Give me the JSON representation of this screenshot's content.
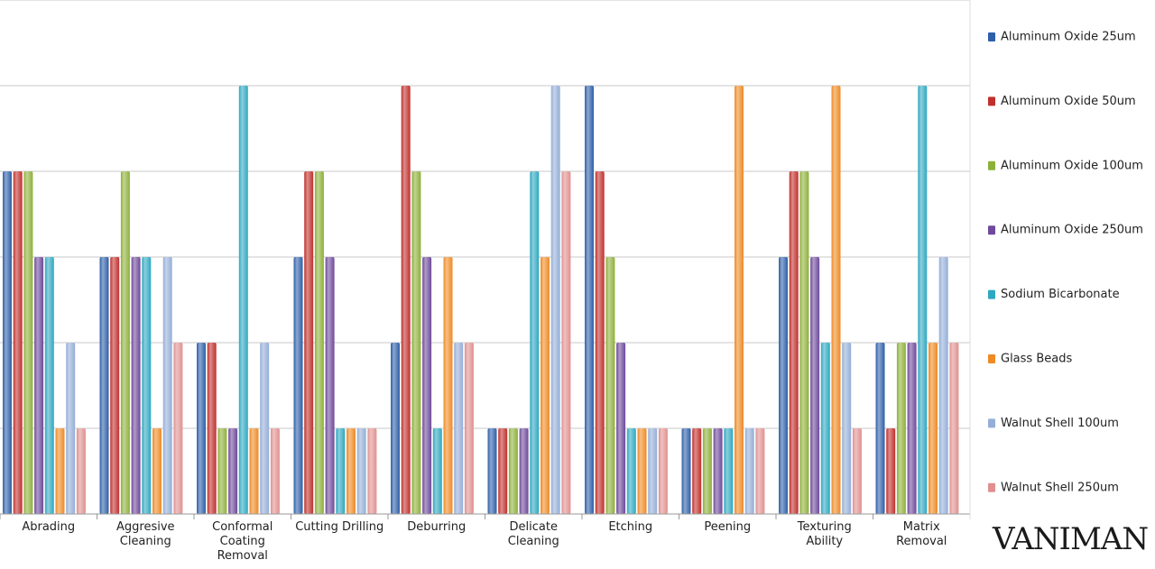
{
  "chart_data": {
    "type": "bar",
    "categories": [
      "Abrading",
      "Aggresive Cleaning",
      "Conformal Coating Removal",
      "Cutting Drilling",
      "Deburring",
      "Delicate Cleaning",
      "Etching",
      "Peening",
      "Texturing Ability",
      "Matrix Removal"
    ],
    "series": [
      {
        "name": "Aluminum Oxide 25um",
        "color": "#2e5fa8",
        "values": [
          4,
          3,
          2,
          3,
          2,
          1,
          5,
          1,
          3,
          2
        ]
      },
      {
        "name": "Aluminum Oxide 50um",
        "color": "#c0302c",
        "values": [
          4,
          3,
          2,
          4,
          5,
          1,
          4,
          1,
          4,
          1
        ]
      },
      {
        "name": "Aluminum Oxide 100um",
        "color": "#8db03a",
        "values": [
          4,
          4,
          1,
          4,
          4,
          1,
          3,
          1,
          4,
          2
        ]
      },
      {
        "name": "Aluminum Oxide 250um",
        "color": "#6f4a9a",
        "values": [
          3,
          3,
          1,
          3,
          3,
          1,
          2,
          1,
          3,
          2
        ]
      },
      {
        "name": "Sodium Bicarbonate",
        "color": "#2ea8c0",
        "values": [
          3,
          3,
          5,
          1,
          1,
          4,
          1,
          1,
          2,
          5
        ]
      },
      {
        "name": "Glass Beads",
        "color": "#ef8a24",
        "values": [
          1,
          1,
          1,
          1,
          3,
          3,
          1,
          5,
          5,
          2
        ]
      },
      {
        "name": "Walnut Shell 100um",
        "color": "#94aed8",
        "values": [
          2,
          3,
          2,
          1,
          2,
          5,
          1,
          1,
          2,
          3
        ]
      },
      {
        "name": "Walnut Shell 250um",
        "color": "#e0908f",
        "values": [
          1,
          2,
          1,
          1,
          2,
          4,
          1,
          1,
          1,
          2
        ]
      }
    ],
    "ylim": [
      0,
      6
    ],
    "yticks": [
      0,
      1,
      2,
      3,
      4,
      5,
      6
    ],
    "grid": true,
    "legend": "right"
  },
  "logo": "VANIMAN"
}
